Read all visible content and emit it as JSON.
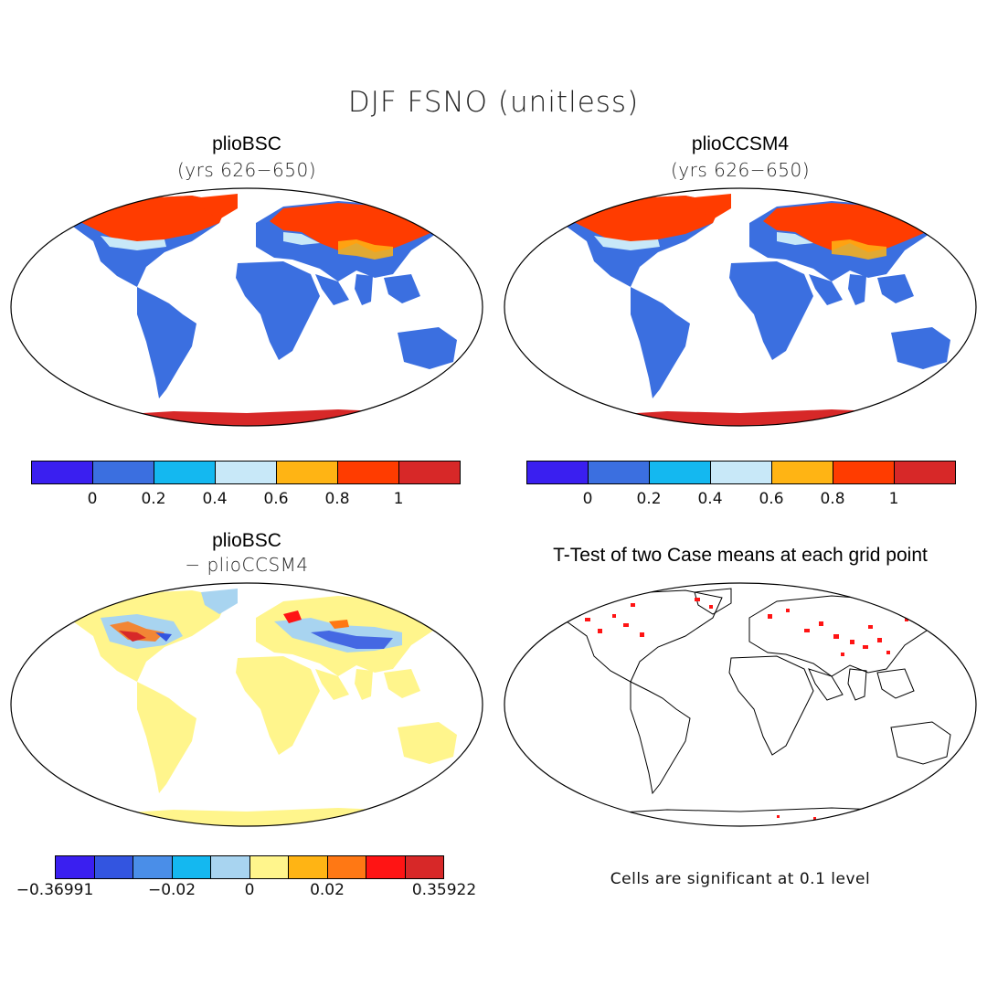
{
  "figure_title": "DJF FSNO (unitless)",
  "panels": {
    "top_left": {
      "title": "plioBSC",
      "subtitle": "(yrs 626−650)"
    },
    "top_right": {
      "title": "plioCCSM4",
      "subtitle": "(yrs 626−650)"
    },
    "bottom_left": {
      "title": "plioBSC",
      "subtitle": "− plioCCSM4"
    },
    "bottom_right": {
      "title": "T-Test of two Case means at each grid point",
      "note": "Cells are significant at 0.1 level"
    }
  },
  "colorbar_top": {
    "colors": [
      "#3a1ff0",
      "#3b6fe0",
      "#14b8f0",
      "#c8e8f8",
      "#ffb414",
      "#ff3c00",
      "#d72828"
    ],
    "ticks": [
      "0",
      "0.2",
      "0.4",
      "0.6",
      "0.8",
      "1"
    ]
  },
  "colorbar_diff": {
    "colors": [
      "#3a1ff0",
      "#3355e0",
      "#4a8ee8",
      "#14b8f0",
      "#a8d4f0",
      "#fff58c",
      "#ffb414",
      "#ff7814",
      "#ff1414",
      "#d72828"
    ],
    "ticks": [
      "−0.36991",
      "−0.02",
      "0",
      "0.02",
      "0.35922"
    ]
  },
  "chart_data": [
    {
      "type": "map",
      "panel": "plioBSC (yrs 626−650)",
      "variable": "DJF FSNO",
      "projection": "robinson",
      "color_levels": [
        0,
        0.2,
        0.4,
        0.6,
        0.8,
        1
      ],
      "regions": [
        {
          "region": "Arctic North America / Siberia",
          "value_range": [
            0.8,
            1.0
          ]
        },
        {
          "region": "Antarctica",
          "value_range": [
            1.0,
            1.0
          ]
        },
        {
          "region": "Mid-latitude Eurasia / North America margin",
          "value_range": [
            0.2,
            0.8
          ]
        },
        {
          "region": "Tropical and southern continents",
          "value_range": [
            0.0,
            0.2
          ]
        }
      ]
    },
    {
      "type": "map",
      "panel": "plioCCSM4 (yrs 626−650)",
      "variable": "DJF FSNO",
      "projection": "robinson",
      "color_levels": [
        0,
        0.2,
        0.4,
        0.6,
        0.8,
        1
      ],
      "regions": [
        {
          "region": "Arctic North America / Siberia",
          "value_range": [
            0.8,
            1.0
          ]
        },
        {
          "region": "Antarctica",
          "value_range": [
            1.0,
            1.0
          ]
        },
        {
          "region": "Mid-latitude Eurasia / North America margin",
          "value_range": [
            0.2,
            0.8
          ]
        },
        {
          "region": "Tropical and southern continents",
          "value_range": [
            0.0,
            0.2
          ]
        }
      ]
    },
    {
      "type": "map",
      "panel": "plioBSC − plioCCSM4",
      "projection": "robinson",
      "color_levels": [
        -0.36991,
        -0.02,
        0,
        0.02,
        0.35922
      ],
      "value_range": [
        -0.36991,
        0.35922
      ]
    },
    {
      "type": "map",
      "panel": "T-Test of two Case means at each grid point",
      "projection": "robinson",
      "significance_level": 0.1
    }
  ]
}
